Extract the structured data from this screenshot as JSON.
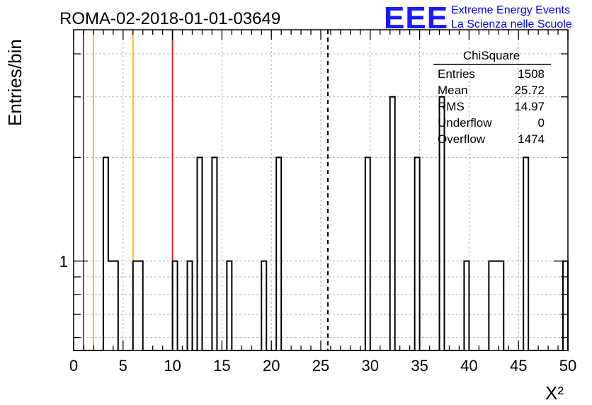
{
  "chart_data": {
    "type": "bar",
    "title": "ROMA-02-2018-01-01-03649",
    "xlabel": "X²",
    "ylabel": "Entries/bin",
    "xlim": [
      0,
      50
    ],
    "ylim_log": [
      0.55,
      4.7
    ],
    "log_y": true,
    "grid": true,
    "bin_width": 0.5,
    "x_ticks": [
      "0",
      "5",
      "10",
      "15",
      "20",
      "25",
      "30",
      "35",
      "40",
      "45",
      "50"
    ],
    "y_ticks": [
      "1"
    ],
    "bins": [
      {
        "x": 3.0,
        "y": 2
      },
      {
        "x": 3.5,
        "y": 1
      },
      {
        "x": 4.0,
        "y": 1
      },
      {
        "x": 6.0,
        "y": 1
      },
      {
        "x": 6.5,
        "y": 1
      },
      {
        "x": 10.0,
        "y": 1
      },
      {
        "x": 11.5,
        "y": 1
      },
      {
        "x": 12.5,
        "y": 2
      },
      {
        "x": 14.0,
        "y": 2
      },
      {
        "x": 15.5,
        "y": 1
      },
      {
        "x": 19.0,
        "y": 1
      },
      {
        "x": 20.5,
        "y": 2
      },
      {
        "x": 29.5,
        "y": 2
      },
      {
        "x": 32.0,
        "y": 3
      },
      {
        "x": 34.5,
        "y": 2
      },
      {
        "x": 37.0,
        "y": 3
      },
      {
        "x": 39.5,
        "y": 1
      },
      {
        "x": 42.0,
        "y": 1
      },
      {
        "x": 42.5,
        "y": 1
      },
      {
        "x": 43.0,
        "y": 1
      },
      {
        "x": 45.5,
        "y": 2
      },
      {
        "x": 49.5,
        "y": 1
      }
    ],
    "vertical_lines": [
      {
        "x": 1.0,
        "color": "#d62728",
        "style": "solid"
      },
      {
        "x": 2.0,
        "color": "#f2c01e",
        "style": "solid"
      },
      {
        "x": 6.0,
        "color": "#f2c01e",
        "style": "solid"
      },
      {
        "x": 10.0,
        "color": "#d62728",
        "style": "solid"
      },
      {
        "x": 25.72,
        "color": "#000000",
        "style": "dashed"
      }
    ],
    "stats_box": {
      "title": "ChiSquare",
      "rows": [
        {
          "label": "Entries",
          "value": "1508"
        },
        {
          "label": "Mean",
          "value": "25.72"
        },
        {
          "label": "RMS",
          "value": "14.97"
        },
        {
          "label": "Underflow",
          "value": "0"
        },
        {
          "label": "Overflow",
          "value": "1474"
        }
      ]
    }
  },
  "logo": {
    "mark": "EEE",
    "line1": "Extreme Energy Events",
    "line2": "La Scienza nelle Scuole",
    "color": "#0000ee"
  }
}
